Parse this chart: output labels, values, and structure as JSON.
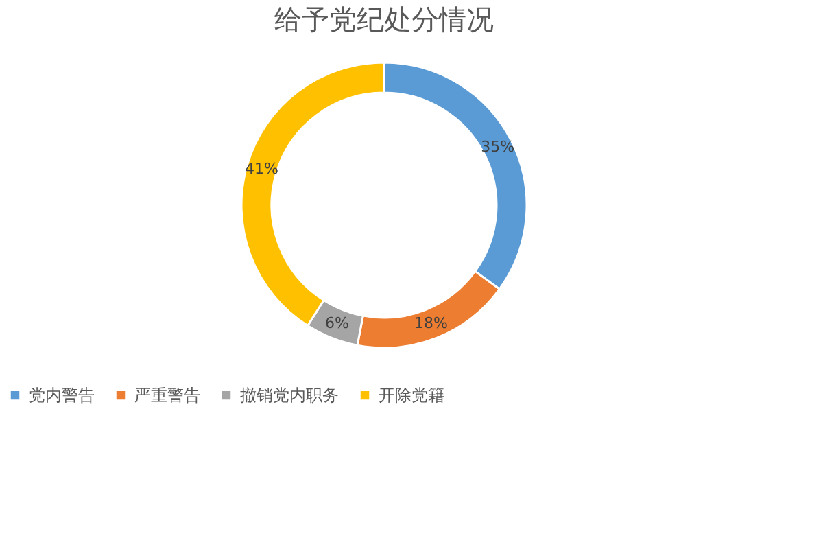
{
  "chart_data": {
    "type": "donut",
    "title": "给予党纪处分情况",
    "categories": [
      "党内警告",
      "严重警告",
      "撤销党内职务",
      "开除党籍"
    ],
    "values": [
      35,
      18,
      6,
      41
    ],
    "value_labels": [
      "35%",
      "18%",
      "6%",
      "41%"
    ],
    "colors": [
      "#5b9bd5",
      "#ed7d31",
      "#a5a5a5",
      "#ffc000"
    ],
    "legend": "bottom"
  }
}
